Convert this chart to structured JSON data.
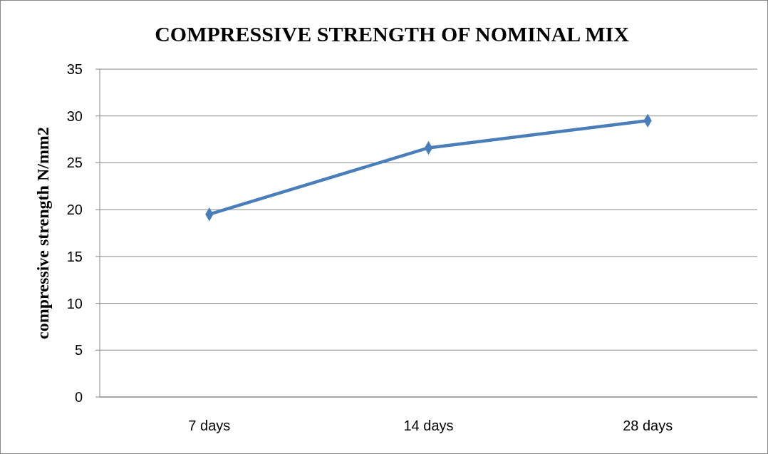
{
  "chart_data": {
    "type": "line",
    "title": "COMPRESSIVE STRENGTH OF NOMINAL MIX",
    "ylabel": "compressive strength N/mm2",
    "categories": [
      "7 days",
      "14 days",
      "28 days"
    ],
    "series": [
      {
        "color": "#4a7ebb",
        "values": [
          19.5,
          26.6,
          29.5
        ]
      }
    ],
    "ylim": [
      0,
      35
    ],
    "yticks": [
      0,
      5,
      10,
      15,
      20,
      25,
      30,
      35
    ],
    "grid": "y",
    "marker": "diamond",
    "line_style": "solid"
  }
}
